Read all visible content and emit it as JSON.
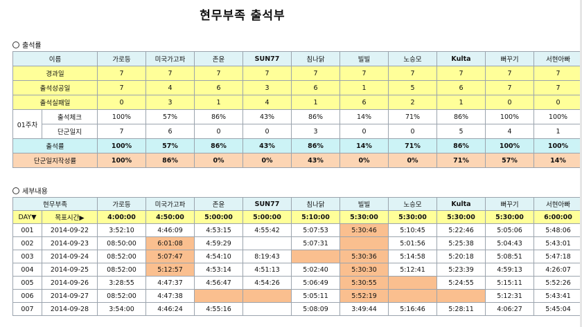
{
  "title": "현무부족 출석부",
  "section1": "출석률",
  "section2": "세부내용",
  "members": [
    "가로등",
    "미국가고파",
    "존윤",
    "SUN77",
    "침나닭",
    "빌빌",
    "노승모",
    "Kulta",
    "뻐꾸기",
    "서현아빠"
  ],
  "summary": {
    "name_header": "이름",
    "elapsed_label": "경과일",
    "elapsed": [
      "7",
      "7",
      "7",
      "7",
      "7",
      "7",
      "7",
      "7",
      "7",
      "7"
    ],
    "success_label": "출석성공일",
    "success": [
      "7",
      "4",
      "6",
      "3",
      "6",
      "1",
      "5",
      "6",
      "7",
      "7"
    ],
    "fail_label": "출석실패일",
    "fail": [
      "0",
      "3",
      "1",
      "4",
      "1",
      "6",
      "2",
      "1",
      "0",
      "0"
    ],
    "week_label": "01주차",
    "check_label": "출석체크",
    "check": [
      "100%",
      "57%",
      "86%",
      "43%",
      "86%",
      "14%",
      "71%",
      "86%",
      "100%",
      "100%"
    ],
    "diary_label": "단군일지",
    "diary": [
      "7",
      "6",
      "0",
      "0",
      "3",
      "0",
      "0",
      "5",
      "4",
      "1"
    ],
    "rate_label": "출석률",
    "rate": [
      "100%",
      "57%",
      "86%",
      "43%",
      "86%",
      "14%",
      "71%",
      "86%",
      "100%",
      "100%"
    ],
    "diary_rate_label": "단군일지작성률",
    "diary_rate": [
      "100%",
      "86%",
      "0%",
      "0%",
      "43%",
      "0%",
      "0%",
      "71%",
      "57%",
      "14%"
    ]
  },
  "detail": {
    "tribe_header": "현무부족",
    "day_label": "DAY▼",
    "target_label": "목표시간▶",
    "targets": [
      "4:00:00",
      "4:50:00",
      "5:00:00",
      "5:00:00",
      "5:10:00",
      "5:30:00",
      "5:30:00",
      "5:30:00",
      "5:30:00",
      "6:00:00"
    ],
    "rows": [
      {
        "day": "001",
        "date": "2014-09-22",
        "times": [
          "3:52:10",
          "4:46:09",
          "4:53:15",
          "4:55:42",
          "5:07:53",
          "5:30:46",
          "5:10:45",
          "5:22:46",
          "5:05:06",
          "5:48:06"
        ],
        "late": [
          false,
          false,
          false,
          false,
          false,
          true,
          false,
          false,
          false,
          false
        ]
      },
      {
        "day": "002",
        "date": "2014-09-23",
        "times": [
          "08:50:00",
          "6:01:08",
          "4:59:29",
          "",
          "5:07:31",
          "",
          "5:01:56",
          "5:25:38",
          "5:04:43",
          "5:43:01"
        ],
        "late": [
          false,
          true,
          false,
          false,
          false,
          true,
          false,
          false,
          false,
          false
        ]
      },
      {
        "day": "003",
        "date": "2014-09-24",
        "times": [
          "08:52:00",
          "5:07:47",
          "4:54:10",
          "8:19:43",
          "",
          "5:30:36",
          "5:14:58",
          "5:20:18",
          "5:08:51",
          "5:47:18"
        ],
        "late": [
          false,
          true,
          false,
          false,
          true,
          true,
          false,
          false,
          false,
          false
        ]
      },
      {
        "day": "004",
        "date": "2014-09-25",
        "times": [
          "08:52:00",
          "5:12:57",
          "4:53:14",
          "4:51:13",
          "5:02:40",
          "5:30:30",
          "5:12:41",
          "5:23:39",
          "4:59:13",
          "4:26:07"
        ],
        "late": [
          false,
          true,
          false,
          false,
          false,
          true,
          false,
          false,
          false,
          false
        ]
      },
      {
        "day": "005",
        "date": "2014-09-26",
        "times": [
          "3:28:55",
          "4:47:37",
          "4:56:47",
          "4:54:26",
          "5:06:49",
          "5:30:55",
          "",
          "5:24:55",
          "5:15:11",
          "5:52:26"
        ],
        "late": [
          false,
          false,
          false,
          false,
          false,
          true,
          true,
          false,
          false,
          false
        ]
      },
      {
        "day": "006",
        "date": "2014-09-27",
        "times": [
          "08:52:00",
          "4:47:38",
          "",
          "",
          "5:05:11",
          "5:52:19",
          "",
          "",
          "5:12:31",
          "5:43:41"
        ],
        "late": [
          false,
          false,
          true,
          true,
          false,
          true,
          true,
          true,
          false,
          false
        ]
      },
      {
        "day": "007",
        "date": "2014-09-28",
        "times": [
          "3:54:00",
          "4:46:24",
          "4:55:16",
          "",
          "5:08:09",
          "3:49:44",
          "5:16:46",
          "5:28:11",
          "4:06:27",
          "5:45:04"
        ],
        "late": [
          false,
          false,
          false,
          false,
          false,
          false,
          false,
          false,
          false,
          false
        ]
      }
    ]
  },
  "colors": {
    "header": "#dff3f6",
    "yellow": "#ffff99",
    "cyan": "#ccf3f6",
    "peach": "#fcd5b4",
    "late": "#fabf8f"
  }
}
